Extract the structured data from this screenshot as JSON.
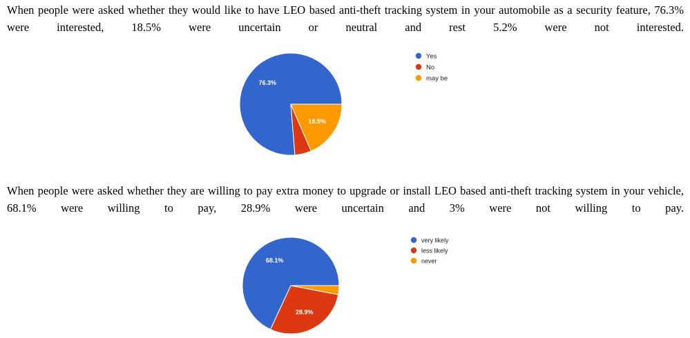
{
  "paragraphs": [
    "When people were asked whether they would like to have LEO based anti-theft tracking system in your automobile as a security feature, 76.3% were interested, 18.5% were uncertain or neutral and rest 5.2% were not interested.",
    "When people were asked whether they are willing to pay extra money to upgrade or install LEO based anti-theft tracking system in your vehicle, 68.1% were willing to pay, 28.9% were uncertain and 3% were not willing to pay."
  ],
  "chart_data": [
    {
      "type": "pie",
      "slices": [
        {
          "label": "Yes",
          "value": 76.3,
          "color": "#3366cc",
          "data_label": "76.3%"
        },
        {
          "label": "No",
          "value": 5.2,
          "color": "#dc3912",
          "data_label": ""
        },
        {
          "label": "may be",
          "value": 18.5,
          "color": "#ff9900",
          "data_label": "18.5%"
        }
      ],
      "legend_position": "right"
    },
    {
      "type": "pie",
      "slices": [
        {
          "label": "very likely",
          "value": 68.1,
          "color": "#3366cc",
          "data_label": "68.1%"
        },
        {
          "label": "less likely",
          "value": 28.9,
          "color": "#dc3912",
          "data_label": "28.9%"
        },
        {
          "label": "never",
          "value": 3.0,
          "color": "#ff9900",
          "data_label": ""
        }
      ],
      "legend_position": "right"
    }
  ]
}
